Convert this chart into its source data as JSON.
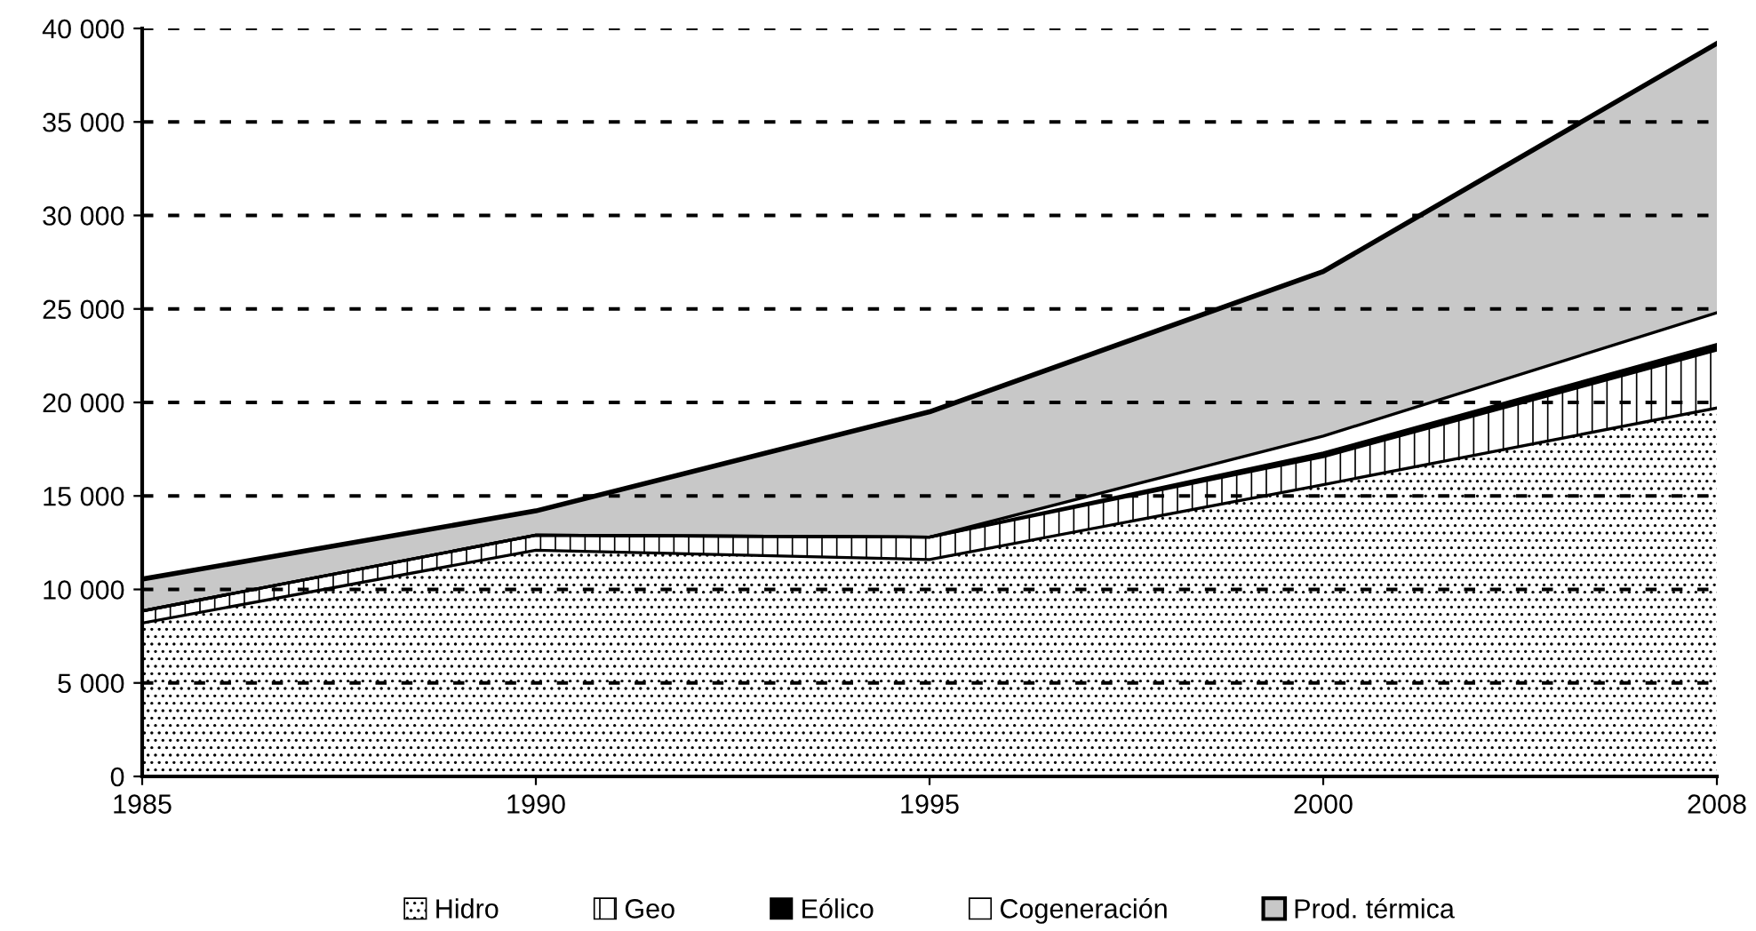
{
  "chart_data": {
    "type": "area",
    "stacked": true,
    "categories": [
      "1985",
      "1990",
      "1995",
      "2000",
      "2008"
    ],
    "series": [
      {
        "name": "Hidro",
        "color": "#ffffff",
        "values": [
          8200,
          12100,
          11600,
          15600,
          19700
        ]
      },
      {
        "name": "Geo",
        "color": "#ffffff",
        "values": [
          650,
          800,
          1200,
          1500,
          3100
        ]
      },
      {
        "name": "Eólico",
        "color": "#000000",
        "values": [
          0,
          0,
          0,
          200,
          300
        ]
      },
      {
        "name": "Cogeneración",
        "color": "#ffffff",
        "values": [
          0,
          0,
          0,
          900,
          1700
        ]
      },
      {
        "name": "Prod. térmica",
        "color": "#c8c8c8",
        "values": [
          1700,
          1300,
          6700,
          8800,
          14400
        ]
      }
    ],
    "ylim": [
      0,
      40000
    ],
    "yticks": [
      {
        "value": 0,
        "label": "0"
      },
      {
        "value": 5000,
        "label": "5 000"
      },
      {
        "value": 10000,
        "label": "10 000"
      },
      {
        "value": 15000,
        "label": "15 000"
      },
      {
        "value": 20000,
        "label": "20 000"
      },
      {
        "value": 25000,
        "label": "25 000"
      },
      {
        "value": 30000,
        "label": "30 000"
      },
      {
        "value": 35000,
        "label": "35 000"
      },
      {
        "value": 40000,
        "label": "40 000"
      }
    ],
    "grid": "y",
    "legend": "bottom"
  }
}
